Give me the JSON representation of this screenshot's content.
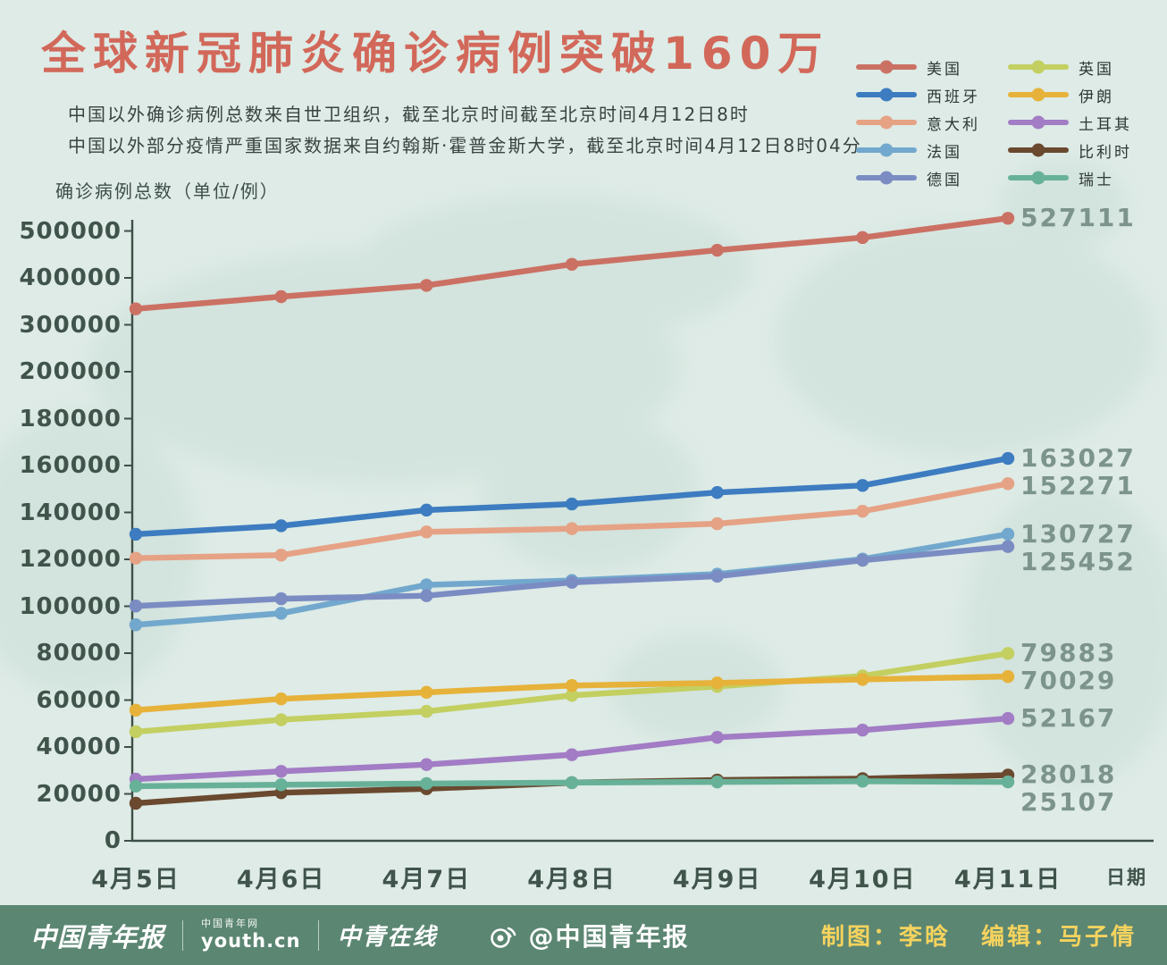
{
  "subtitles": [
    "中国以外确诊病例总数来自世卫组织，截至北京时间截至北京时间4月12日8时",
    "中国以外部分疫情严重国家数据来自约翰斯·霍普金斯大学，截至北京时间4月12日8时04分"
  ],
  "chart_data": {
    "type": "line",
    "title": "全球新冠肺炎确诊病例突破160万",
    "xlabel": "日期",
    "ylabel": "确诊病例总数（单位/例）",
    "x": [
      "4月5日",
      "4月6日",
      "4月7日",
      "4月8日",
      "4月9日",
      "4月10日",
      "4月11日"
    ],
    "y_ticks": [
      0,
      20000,
      40000,
      60000,
      80000,
      100000,
      120000,
      140000,
      160000,
      180000,
      200000,
      300000,
      400000,
      500000
    ],
    "scale_note": "broken y scale: 20000 per division up to 200000, then 100000 per division",
    "grid": false,
    "legend_position": "top-right",
    "legend_columns": [
      [
        "美国",
        "西班牙",
        "意大利",
        "法国",
        "德国"
      ],
      [
        "英国",
        "伊朗",
        "土耳其",
        "比利时",
        "瑞士"
      ]
    ],
    "series": [
      {
        "name": "美国",
        "color": "#cb7164",
        "values": [
          334000,
          360000,
          384000,
          429000,
          459000,
          486000,
          527111
        ],
        "end_label": "527111"
      },
      {
        "name": "西班牙",
        "color": "#3d7cc0",
        "values": [
          130700,
          134300,
          141000,
          143600,
          148500,
          151500,
          163027
        ],
        "end_label": "163027"
      },
      {
        "name": "意大利",
        "color": "#e6a285",
        "values": [
          120500,
          121800,
          131700,
          133100,
          135200,
          140500,
          152271
        ],
        "end_label": "152271"
      },
      {
        "name": "法国",
        "color": "#72a8cd",
        "values": [
          92100,
          97000,
          109100,
          111000,
          113700,
          120100,
          130727
        ],
        "end_label": "130727"
      },
      {
        "name": "德国",
        "color": "#7b8cc3",
        "values": [
          100100,
          103200,
          104500,
          110200,
          112800,
          119600,
          125452
        ],
        "end_label": "125452"
      },
      {
        "name": "英国",
        "color": "#c3cf60",
        "values": [
          46500,
          51600,
          55200,
          62000,
          65800,
          70300,
          79883
        ],
        "end_label": "79883"
      },
      {
        "name": "伊朗",
        "color": "#e6b23a",
        "values": [
          55700,
          60500,
          63300,
          66200,
          67300,
          68800,
          70029
        ],
        "end_label": "70029"
      },
      {
        "name": "土耳其",
        "color": "#a27cc5",
        "values": [
          26300,
          29600,
          32500,
          36700,
          44100,
          47200,
          52167
        ],
        "end_label": "52167"
      },
      {
        "name": "比利时",
        "color": "#6a492f",
        "values": [
          16000,
          20500,
          22200,
          24800,
          25900,
          26500,
          28018
        ],
        "end_label": "28018"
      },
      {
        "name": "瑞士",
        "color": "#68b199",
        "values": [
          23300,
          23900,
          24400,
          24800,
          25100,
          25400,
          25107
        ],
        "end_label": "25107"
      }
    ]
  },
  "footer": {
    "logo_zgqnb": "中国青年报",
    "logo_youth_label": "中国青年网",
    "logo_youth": "youth.cn",
    "logo_zqzx": "中青在线",
    "weibo_handle": "@中国青年报",
    "credits_maker": "制图：李晗",
    "credits_editor": "编辑：马子倩"
  }
}
